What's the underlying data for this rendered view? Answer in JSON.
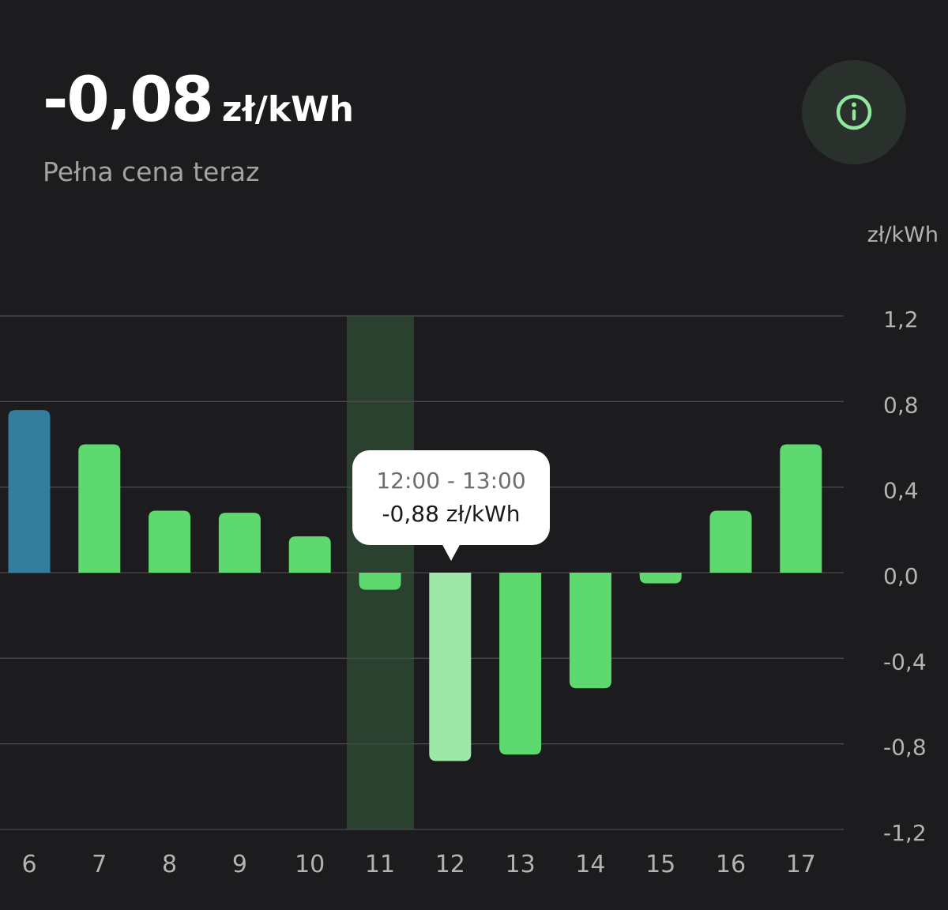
{
  "header": {
    "price_value": "-0,08",
    "price_unit": "zł/kWh",
    "caption": "Pełna cena teraz",
    "info_icon": "info-circle-icon"
  },
  "tooltip": {
    "range": "12:00 - 13:00",
    "value": "-0,88 zł/kWh"
  },
  "colors": {
    "background": "#1c1c1e",
    "bar_green": "#5dd96f",
    "bar_blue": "#347d9c",
    "bar_selected": "#9de8a6",
    "current_hour_band": "#2a4130",
    "info_accent": "#8fe89c"
  },
  "chart_data": {
    "type": "bar",
    "title": "",
    "xlabel": "",
    "ylabel": "zł/kWh",
    "unit_label": "zł/kWh",
    "ylim": [
      -1.2,
      1.2
    ],
    "grid": true,
    "categories": [
      "6",
      "7",
      "8",
      "9",
      "10",
      "11",
      "12",
      "13",
      "14",
      "15",
      "16",
      "17"
    ],
    "values": [
      0.76,
      0.6,
      0.29,
      0.28,
      0.17,
      -0.08,
      -0.88,
      -0.85,
      -0.54,
      -0.05,
      0.29,
      0.6
    ],
    "y_ticks": [
      {
        "value": 1.2,
        "label": "1,2"
      },
      {
        "value": 0.8,
        "label": "0,8"
      },
      {
        "value": 0.4,
        "label": "0,4"
      },
      {
        "value": 0.0,
        "label": "0,0"
      },
      {
        "value": -0.4,
        "label": "-0,4"
      },
      {
        "value": -0.8,
        "label": "-0,8"
      },
      {
        "value": -1.2,
        "label": "-1,2"
      }
    ],
    "current_hour": "11",
    "selected_hour": "12",
    "blue_hours": [
      "6"
    ]
  }
}
